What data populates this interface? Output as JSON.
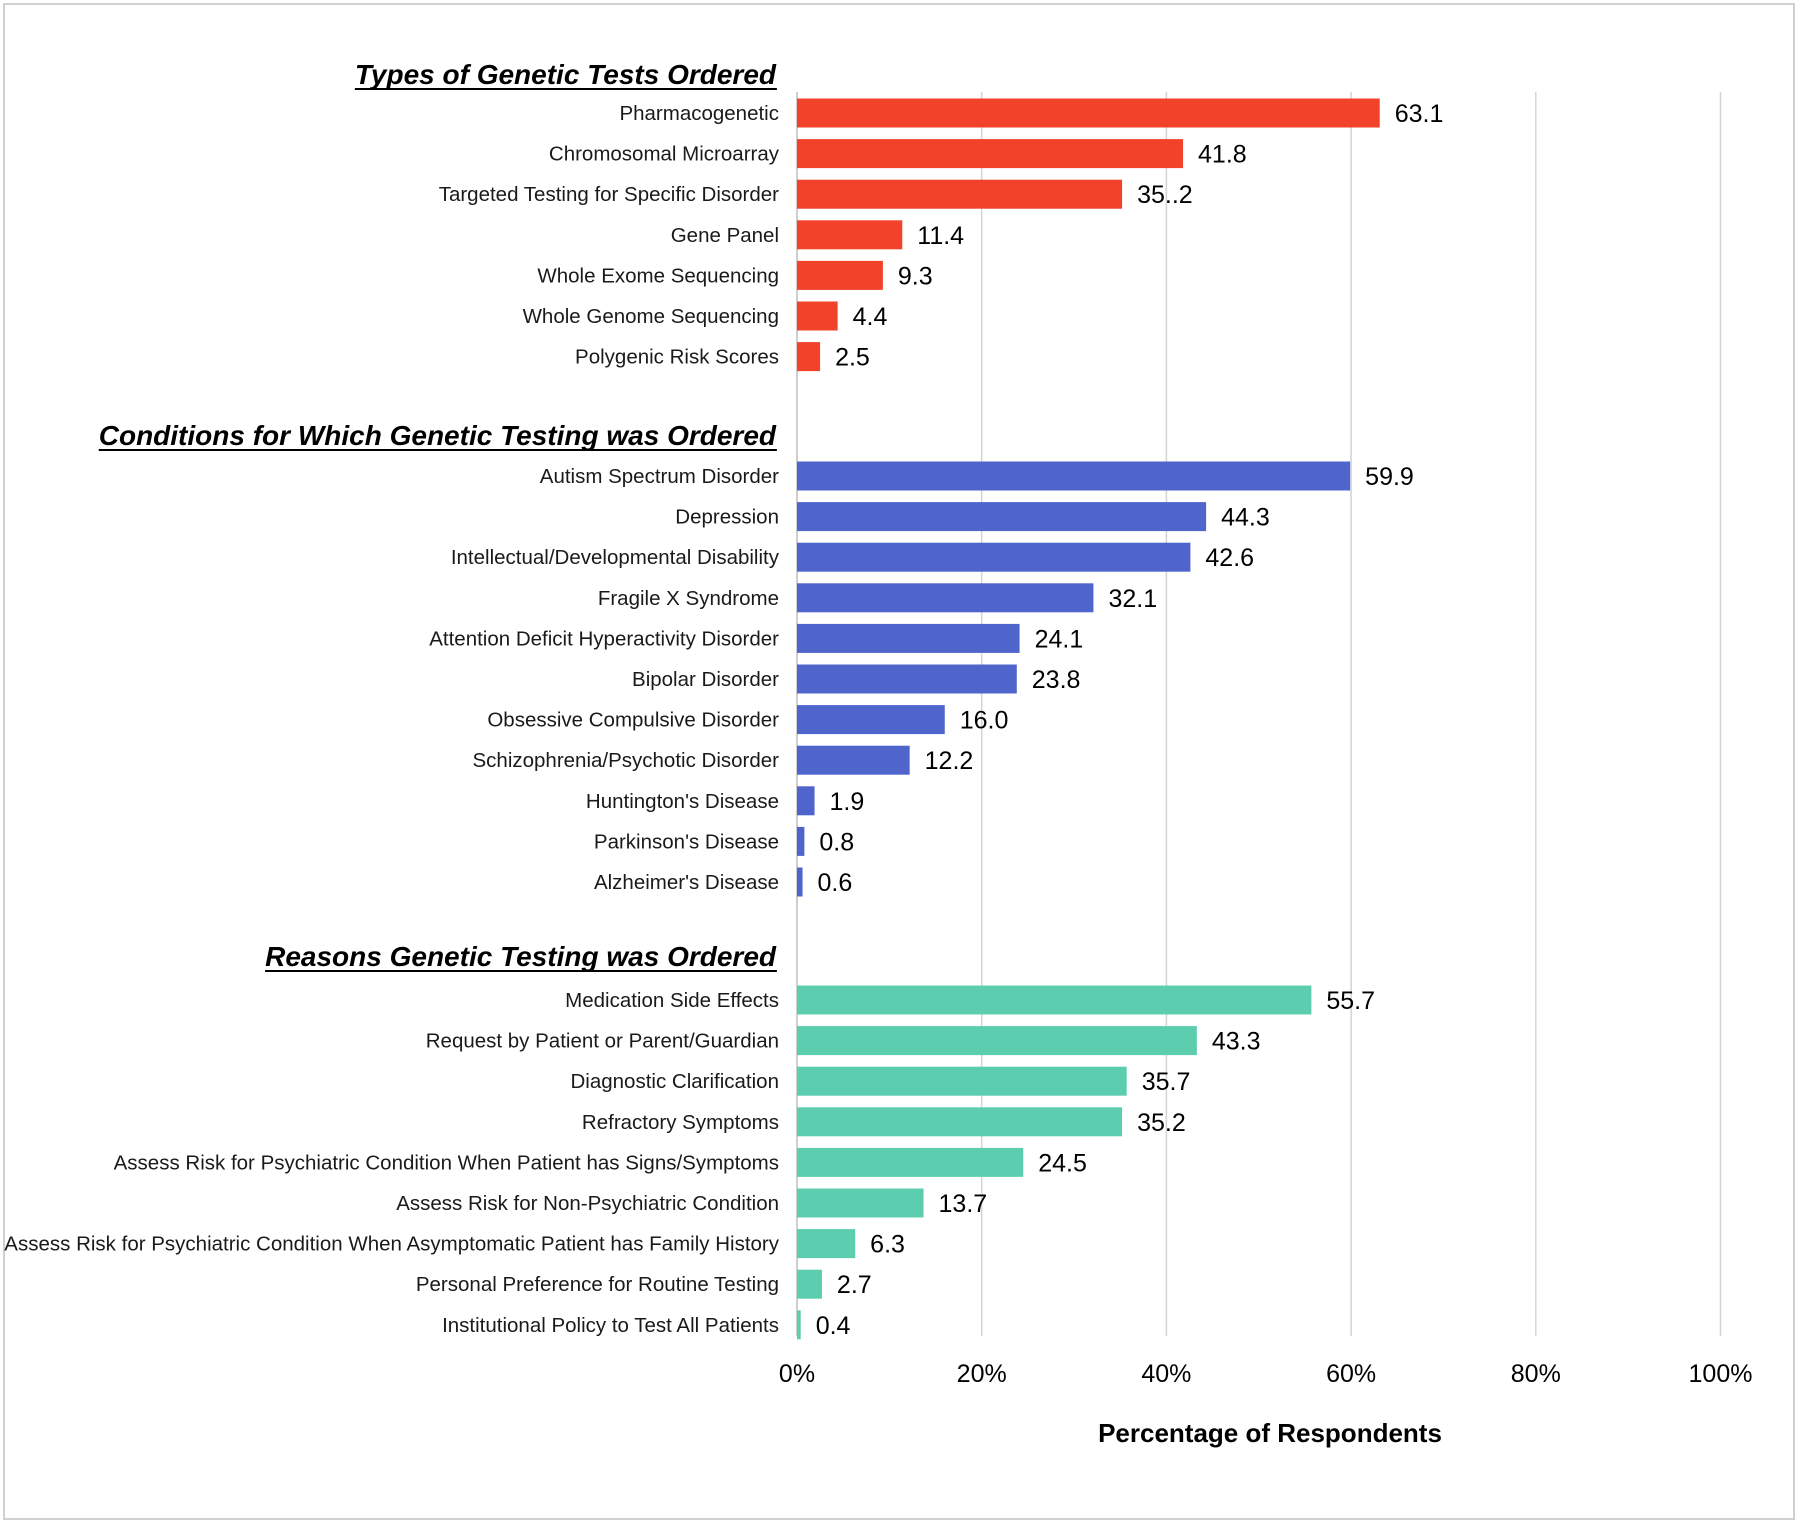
{
  "chart_data": {
    "type": "bar",
    "orientation": "horizontal",
    "xlabel": "Percentage of Respondents",
    "xlim": [
      0,
      100
    ],
    "x_ticks": [
      "0%",
      "20%",
      "40%",
      "60%",
      "80%",
      "100%"
    ],
    "grid": true,
    "sections": [
      {
        "title": "Types of Genetic Tests Ordered",
        "color": "#F2422A",
        "categories": [
          "Pharmacogenetic",
          "Chromosomal Microarray",
          "Targeted Testing for Specific Disorder",
          "Gene Panel",
          "Whole Exome Sequencing",
          "Whole Genome Sequencing",
          "Polygenic Risk Scores"
        ],
        "values": [
          63.1,
          41.8,
          35.2,
          11.4,
          9.3,
          4.4,
          2.5
        ],
        "labels": [
          "63.1",
          "41.8",
          "35..2",
          "11.4",
          "9.3",
          "4.4",
          "2.5"
        ]
      },
      {
        "title": "Conditions for Which Genetic Testing was Ordered",
        "color": "#5065CC",
        "categories": [
          "Autism Spectrum Disorder",
          "Depression",
          "Intellectual/Developmental Disability",
          "Fragile X Syndrome",
          "Attention Deficit Hyperactivity Disorder",
          "Bipolar Disorder",
          "Obsessive Compulsive Disorder",
          "Schizophrenia/Psychotic Disorder",
          "Huntington's Disease",
          "Parkinson's Disease",
          "Alzheimer's Disease"
        ],
        "values": [
          59.9,
          44.3,
          42.6,
          32.1,
          24.1,
          23.8,
          16.0,
          12.2,
          1.9,
          0.8,
          0.6
        ],
        "labels": [
          "59.9",
          "44.3",
          "42.6",
          "32.1",
          "24.1",
          "23.8",
          "16.0",
          "12.2",
          "1.9",
          "0.8",
          "0.6"
        ]
      },
      {
        "title": "Reasons Genetic Testing was Ordered",
        "color": "#5DCDB0",
        "categories": [
          "Medication Side Effects",
          "Request by Patient or Parent/Guardian",
          "Diagnostic Clarification",
          "Refractory Symptoms",
          "Assess Risk for Psychiatric Condition When Patient has Signs/Symptoms",
          "Assess Risk for Non-Psychiatric Condition",
          "Assess Risk for Psychiatric Condition When Asymptomatic Patient has Family History",
          "Personal Preference for Routine Testing",
          "Institutional Policy to Test All Patients"
        ],
        "values": [
          55.7,
          43.3,
          35.7,
          35.2,
          24.5,
          13.7,
          6.3,
          2.7,
          0.4
        ],
        "labels": [
          "55.7",
          "43.3",
          "35.7",
          "35.2",
          "24.5",
          "13.7",
          "6.3",
          "2.7",
          "0.4"
        ]
      }
    ]
  }
}
